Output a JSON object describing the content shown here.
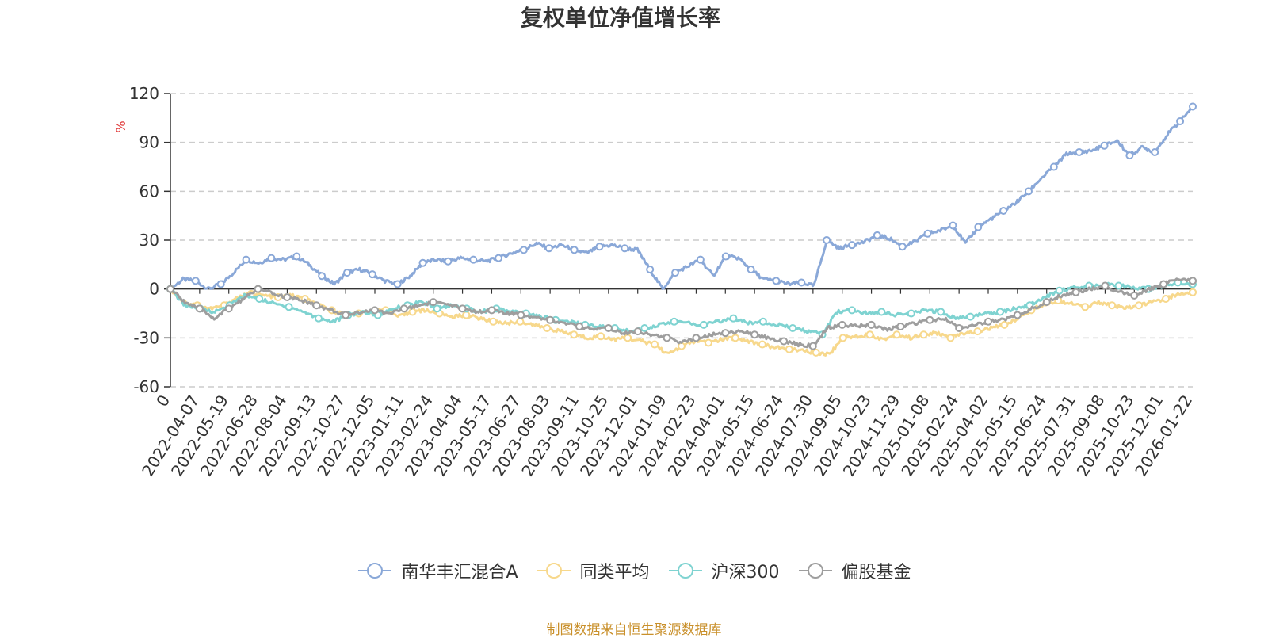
{
  "chart_data": {
    "type": "line",
    "title": "复权单位净值增长率",
    "ylabel": "%",
    "ylim": [
      -60,
      120
    ],
    "yticks": [
      120,
      90,
      60,
      30,
      0,
      -30,
      -60
    ],
    "xticklabels": [
      "0",
      "2022-04-07",
      "2022-05-19",
      "2022-06-28",
      "2022-08-04",
      "2022-09-13",
      "2022-10-27",
      "2022-12-05",
      "2023-01-11",
      "2023-02-24",
      "2023-04-04",
      "2023-05-17",
      "2023-06-27",
      "2023-08-03",
      "2023-09-11",
      "2023-10-25",
      "2023-12-01",
      "2024-01-09",
      "2024-02-23",
      "2024-04-01",
      "2024-05-15",
      "2024-06-24",
      "2024-07-30",
      "2024-09-05",
      "2024-10-23",
      "2024-11-29",
      "2025-01-08",
      "2025-02-24",
      "2025-04-02",
      "2025-05-15",
      "2025-06-24",
      "2025-07-31",
      "2025-09-08",
      "2025-10-23",
      "2025-12-01",
      "2026-01-22"
    ],
    "grid": "dashed horizontal",
    "legend_position": "bottom",
    "series": [
      {
        "name": "南华丰汇混合A",
        "color": "#8aa8d8",
        "values": [
          0,
          6,
          5,
          0,
          3,
          10,
          18,
          16,
          19,
          18,
          20,
          15,
          8,
          3,
          10,
          12,
          9,
          5,
          3,
          8,
          16,
          18,
          17,
          19,
          18,
          17,
          19,
          22,
          24,
          28,
          25,
          27,
          24,
          22,
          26,
          27,
          25,
          24,
          12,
          0,
          10,
          14,
          18,
          8,
          20,
          19,
          12,
          6,
          5,
          3,
          4,
          2,
          30,
          25,
          27,
          29,
          33,
          31,
          26,
          29,
          34,
          36,
          39,
          28,
          38,
          43,
          48,
          53,
          60,
          68,
          75,
          83,
          84,
          85,
          88,
          91,
          82,
          87,
          84,
          95,
          103,
          112
        ]
      },
      {
        "name": "同类平均",
        "color": "#f7d88c",
        "values": [
          0,
          -8,
          -10,
          -12,
          -10,
          -5,
          -3,
          -4,
          -5,
          -4,
          -6,
          -10,
          -13,
          -16,
          -15,
          -14,
          -13,
          -17,
          -14,
          -13,
          -15,
          -17,
          -16,
          -18,
          -20,
          -21,
          -20,
          -22,
          -24,
          -26,
          -28,
          -30,
          -29,
          -31,
          -30,
          -32,
          -34,
          -40,
          -35,
          -32,
          -33,
          -31,
          -30,
          -32,
          -34,
          -36,
          -37,
          -38,
          -39,
          -40,
          -30,
          -29,
          -28,
          -31,
          -28,
          -30,
          -28,
          -27,
          -30,
          -27,
          -26,
          -24,
          -22,
          -18,
          -13,
          -9,
          -7,
          -9,
          -11,
          -8,
          -10,
          -12,
          -10,
          -8,
          -6,
          -3,
          -2
        ]
      },
      {
        "name": "沪深300",
        "color": "#7fd3d1",
        "values": [
          0,
          -10,
          -12,
          -14,
          -10,
          -4,
          -6,
          -9,
          -11,
          -14,
          -18,
          -20,
          -16,
          -14,
          -16,
          -12,
          -10,
          -8,
          -12,
          -10,
          -12,
          -14,
          -12,
          -14,
          -15,
          -17,
          -19,
          -20,
          -22,
          -23,
          -24,
          -26,
          -24,
          -22,
          -20,
          -21,
          -22,
          -20,
          -18,
          -21,
          -20,
          -22,
          -24,
          -26,
          -28,
          -14,
          -13,
          -15,
          -14,
          -16,
          -15,
          -13,
          -14,
          -18,
          -17,
          -15,
          -14,
          -12,
          -10,
          -5,
          -1,
          1,
          2,
          3,
          2,
          1,
          0,
          2,
          4,
          3
        ]
      },
      {
        "name": "偏股基金",
        "color": "#9e9e9e",
        "values": [
          0,
          -8,
          -12,
          -18,
          -12,
          -6,
          0,
          -3,
          -5,
          -7,
          -10,
          -13,
          -16,
          -14,
          -13,
          -15,
          -12,
          -10,
          -8,
          -10,
          -12,
          -14,
          -13,
          -15,
          -16,
          -17,
          -19,
          -21,
          -23,
          -25,
          -24,
          -27,
          -26,
          -28,
          -30,
          -33,
          -30,
          -28,
          -27,
          -26,
          -28,
          -30,
          -32,
          -34,
          -35,
          -24,
          -22,
          -23,
          -22,
          -25,
          -23,
          -21,
          -19,
          -18,
          -24,
          -22,
          -20,
          -19,
          -16,
          -12,
          -8,
          -4,
          -2,
          0,
          2,
          -2,
          -4,
          0,
          3,
          6,
          5
        ]
      }
    ]
  },
  "source_text": "制图数据来自恒生聚源数据库"
}
